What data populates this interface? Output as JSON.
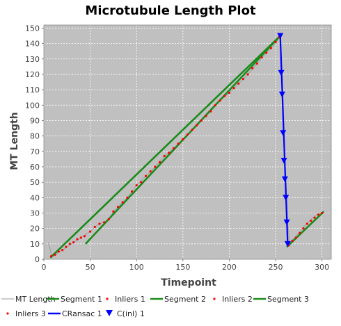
{
  "chart_data": {
    "type": "line",
    "title": "Microtubule Length Plot",
    "xlabel": "Timepoint",
    "ylabel": "MT Length",
    "xlim": [
      0,
      310
    ],
    "ylim": [
      0,
      152
    ],
    "x_ticks": [
      0,
      50,
      100,
      150,
      200,
      250,
      300
    ],
    "y_ticks": [
      0,
      10,
      20,
      30,
      40,
      50,
      60,
      70,
      80,
      90,
      100,
      110,
      120,
      130,
      140,
      150
    ],
    "grid": true,
    "legend_position": "bottom",
    "colors": {
      "plot_background": "#c0c0c0",
      "mt_length": "#999999",
      "segment": "#1a8a1a",
      "inliers": "#ff0000",
      "cransac": "#0000ff"
    },
    "series": [
      {
        "name": "MT Length",
        "style": "thin-line",
        "x": [
          5,
          8,
          10,
          15,
          20,
          25,
          30,
          35,
          40,
          45,
          50,
          55,
          60,
          65,
          70,
          75,
          80,
          85,
          90,
          95,
          100,
          110,
          120,
          130,
          140,
          150,
          160,
          170,
          180,
          190,
          200,
          210,
          220,
          230,
          240,
          250,
          255,
          257,
          258,
          259,
          260,
          261,
          262,
          263,
          265,
          270,
          275,
          280,
          285,
          290,
          295,
          300
        ],
        "y": [
          11,
          3,
          2,
          4,
          6,
          8,
          10,
          12,
          14,
          16,
          18,
          21,
          23,
          24,
          26,
          31,
          34,
          37,
          40,
          44,
          48,
          54,
          60,
          67,
          72,
          78,
          84,
          90,
          96,
          103,
          108,
          114,
          120,
          127,
          134,
          140,
          145,
          121,
          107,
          82,
          64,
          52,
          40,
          24,
          10,
          14,
          17,
          21,
          24,
          27,
          29,
          30
        ]
      },
      {
        "name": "Segment 1",
        "style": "thick-line",
        "x": [
          7,
          255
        ],
        "y": [
          1,
          145
        ]
      },
      {
        "name": "Inliers 1",
        "style": "dots",
        "x": [
          8,
          12,
          16,
          20,
          24,
          28,
          32,
          36,
          40,
          44,
          50,
          55,
          60,
          65,
          70,
          75,
          80,
          85,
          90,
          95,
          100,
          105,
          110,
          115,
          120,
          125,
          130,
          135,
          140,
          145,
          150,
          155,
          160,
          165,
          170,
          175,
          180,
          185,
          190,
          195,
          200,
          205,
          210,
          215,
          220,
          225,
          230,
          235,
          240,
          245,
          250,
          254
        ],
        "y": [
          2,
          3,
          5,
          6,
          8,
          10,
          11,
          13,
          14,
          15,
          18,
          21,
          23,
          24,
          26,
          31,
          34,
          37,
          40,
          44,
          48,
          50,
          54,
          57,
          60,
          63,
          67,
          69,
          72,
          75,
          78,
          81,
          84,
          87,
          90,
          93,
          96,
          100,
          103,
          106,
          108,
          111,
          114,
          117,
          120,
          124,
          127,
          131,
          134,
          137,
          141,
          144
        ]
      },
      {
        "name": "Segment 2",
        "style": "thick-line",
        "x": [
          45,
          255
        ],
        "y": [
          10,
          145
        ]
      },
      {
        "name": "Inliers 2",
        "style": "dots",
        "x": [],
        "y": []
      },
      {
        "name": "Segment 3",
        "style": "thick-line",
        "x": [
          262,
          302
        ],
        "y": [
          8,
          31
        ]
      },
      {
        "name": "Inliers 3",
        "style": "dots",
        "x": [
          264,
          268,
          272,
          276,
          280,
          284,
          288,
          292,
          296,
          300
        ],
        "y": [
          9,
          12,
          14,
          17,
          20,
          23,
          25,
          27,
          29,
          30
        ]
      },
      {
        "name": "CRansac 1",
        "style": "line",
        "x": [
          255,
          263
        ],
        "y": [
          145,
          10
        ]
      },
      {
        "name": "C(inl) 1",
        "style": "triangle-down",
        "x": [
          255,
          256,
          257,
          258,
          259,
          260,
          261,
          262,
          263
        ],
        "y": [
          145,
          121,
          107,
          82,
          64,
          52,
          40,
          24,
          10
        ]
      }
    ]
  }
}
